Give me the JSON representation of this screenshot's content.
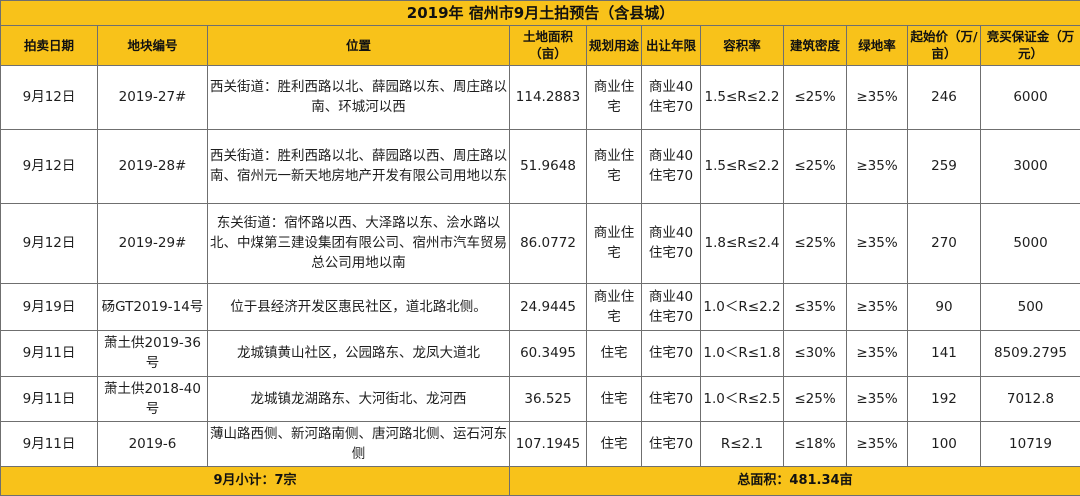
{
  "title": "2019年 宿州市9月土拍预告（含县城）",
  "headers": [
    "拍卖日期",
    "地块编号",
    "位置",
    "土地面积（亩）",
    "规划用途",
    "出让年限",
    "容积率",
    "建筑密度",
    "绿地率",
    "起始价（万/亩）",
    "竞买保证金（万元）"
  ],
  "rows": [
    [
      "9月12日",
      "2019-27#",
      "西关街道：胜利西路以北、薛园路以东、周庄路以南、环城河以西",
      "114.2883",
      "商业住宅",
      "商业40住宅70",
      "1.5≤R≤2.2",
      "≤25%",
      "≥35%",
      "246",
      "6000"
    ],
    [
      "9月12日",
      "2019-28#",
      "西关街道：胜利西路以北、薛园路以西、周庄路以南、宿州元一新天地房地产开发有限公司用地以东",
      "51.9648",
      "商业住宅",
      "商业40住宅70",
      "1.5≤R≤2.2",
      "≤25%",
      "≥35%",
      "259",
      "3000"
    ],
    [
      "9月12日",
      "2019-29#",
      "东关街道：宿怀路以西、大泽路以东、浍水路以北、中煤第三建设集团有限公司、宿州市汽车贸易总公司用地以南",
      "86.0772",
      "商业住宅",
      "商业40住宅70",
      "1.8≤R≤2.4",
      "≤25%",
      "≥35%",
      "270",
      "5000"
    ],
    [
      "9月19日",
      "砀GT2019-14号",
      "位于县经济开发区惠民社区，道北路北侧。",
      "24.9445",
      "商业住宅",
      "商业40住宅70",
      "1.0＜R≤2.2",
      "≤35%",
      "≥35%",
      "90",
      "500"
    ],
    [
      "9月11日",
      "萧土供2019-36号",
      "龙城镇黄山社区，公园路东、龙凤大道北",
      "60.3495",
      "住宅",
      "住宅70",
      "1.0＜R≤1.8",
      "≤30%",
      "≥35%",
      "141",
      "8509.2795"
    ],
    [
      "9月11日",
      "萧土供2018-40号",
      "龙城镇龙湖路东、大河街北、龙河西",
      "36.525",
      "住宅",
      "住宅70",
      "1.0＜R≤2.5",
      "≤25%",
      "≥35%",
      "192",
      "7012.8"
    ],
    [
      "9月11日",
      "2019-6",
      "薄山路西侧、新河路南侧、唐河路北侧、运石河东侧",
      "107.1945",
      "住宅",
      "住宅70",
      "R≤2.1",
      "≤18%",
      "≥35%",
      "100",
      "10719"
    ]
  ],
  "footer": {
    "subtotal": "9月小计：7宗",
    "total_area": "总面积：481.34亩"
  },
  "colors": {
    "header_bg": "#f8c21a",
    "border": "#6f6f6f"
  }
}
